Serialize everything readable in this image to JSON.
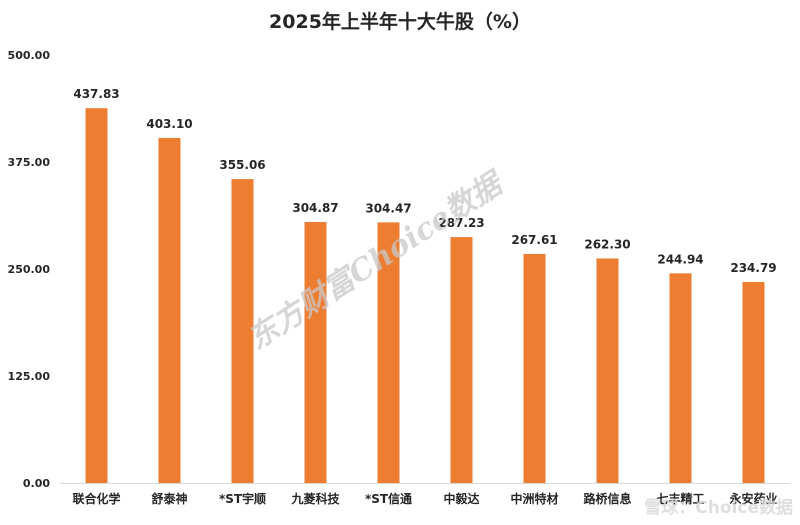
{
  "chart_data": {
    "type": "bar",
    "title": "2025年上半年十大牛股（%）",
    "categories": [
      "联合化学",
      "舒泰神",
      "*ST宇顺",
      "九菱科技",
      "*ST信通",
      "中毅达",
      "中洲特材",
      "路桥信息",
      "七丰精工",
      "永安药业"
    ],
    "values": [
      437.83,
      403.1,
      355.06,
      304.87,
      304.47,
      287.23,
      267.61,
      262.3,
      244.94,
      234.79
    ],
    "value_labels": [
      "437.83",
      "403.10",
      "355.06",
      "304.87",
      "304.47",
      "287.23",
      "267.61",
      "262.30",
      "244.94",
      "234.79"
    ],
    "yticks": [
      "0.00",
      "125.00",
      "250.00",
      "375.00",
      "500.00"
    ],
    "ylim": [
      0,
      500
    ],
    "xlabel": "",
    "ylabel": "",
    "grid": false,
    "bar_color": "#ed7d31"
  },
  "watermark": {
    "main": "东方财富Choice数据",
    "corner": "雪球：Choice数据"
  }
}
